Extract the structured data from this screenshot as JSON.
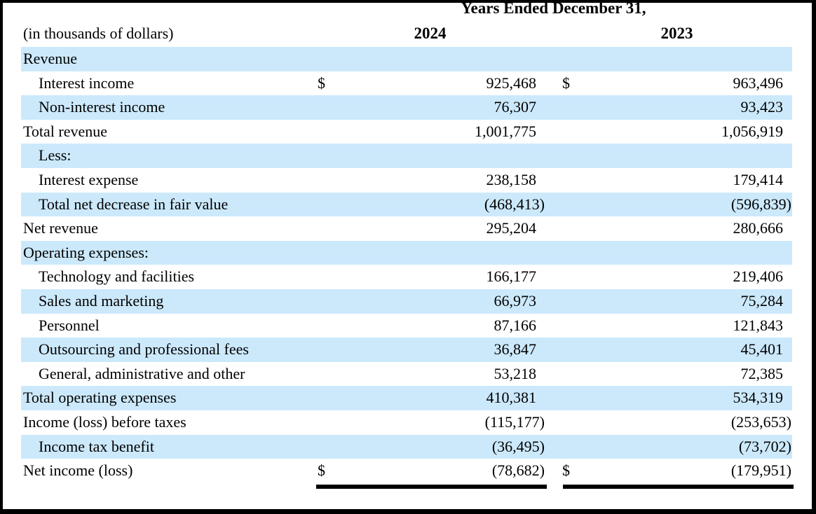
{
  "header": {
    "title": "Years Ended December 31,",
    "corner_label": "(in thousands of dollars)",
    "col_2024": "2024",
    "col_2023": "2023"
  },
  "style": {
    "shade_color": "#cce9fb",
    "text_color": "#000000",
    "border_color": "#000000"
  },
  "currency_symbol": "$",
  "rows": [
    {
      "label": "Revenue",
      "indent": 0,
      "shaded": true,
      "d2024": "",
      "v2024": "",
      "d2023": "",
      "v2023": ""
    },
    {
      "label": "Interest income",
      "indent": 1,
      "shaded": false,
      "d2024": "$",
      "v2024": "925,468",
      "d2023": "$",
      "v2023": "963,496"
    },
    {
      "label": "Non-interest income",
      "indent": 1,
      "shaded": true,
      "d2024": "",
      "v2024": "76,307",
      "d2023": "",
      "v2023": "93,423"
    },
    {
      "label": "Total revenue",
      "indent": 0,
      "shaded": false,
      "d2024": "",
      "v2024": "1,001,775",
      "d2023": "",
      "v2023": "1,056,919"
    },
    {
      "label": "Less:",
      "indent": 1,
      "shaded": true,
      "d2024": "",
      "v2024": "",
      "d2023": "",
      "v2023": ""
    },
    {
      "label": "Interest expense",
      "indent": 1,
      "shaded": false,
      "d2024": "",
      "v2024": "238,158",
      "d2023": "",
      "v2023": "179,414"
    },
    {
      "label": "Total net decrease in fair value",
      "indent": 1,
      "shaded": true,
      "d2024": "",
      "v2024": "(468,413)",
      "d2023": "",
      "v2023": "(596,839)"
    },
    {
      "label": "Net revenue",
      "indent": 0,
      "shaded": false,
      "d2024": "",
      "v2024": "295,204",
      "d2023": "",
      "v2023": "280,666"
    },
    {
      "label": "Operating expenses:",
      "indent": 0,
      "shaded": true,
      "d2024": "",
      "v2024": "",
      "d2023": "",
      "v2023": ""
    },
    {
      "label": "Technology and facilities",
      "indent": 1,
      "shaded": false,
      "d2024": "",
      "v2024": "166,177",
      "d2023": "",
      "v2023": "219,406"
    },
    {
      "label": "Sales and marketing",
      "indent": 1,
      "shaded": true,
      "d2024": "",
      "v2024": "66,973",
      "d2023": "",
      "v2023": "75,284"
    },
    {
      "label": "Personnel",
      "indent": 1,
      "shaded": false,
      "d2024": "",
      "v2024": "87,166",
      "d2023": "",
      "v2023": "121,843"
    },
    {
      "label": "Outsourcing and professional fees",
      "indent": 1,
      "shaded": true,
      "d2024": "",
      "v2024": "36,847",
      "d2023": "",
      "v2023": "45,401"
    },
    {
      "label": "General, administrative and other",
      "indent": 1,
      "shaded": false,
      "d2024": "",
      "v2024": "53,218",
      "d2023": "",
      "v2023": "72,385"
    },
    {
      "label": "Total operating expenses",
      "indent": 0,
      "shaded": true,
      "d2024": "",
      "v2024": "410,381",
      "d2023": "",
      "v2023": "534,319"
    },
    {
      "label": "Income (loss) before taxes",
      "indent": 0,
      "shaded": false,
      "d2024": "",
      "v2024": "(115,177)",
      "d2023": "",
      "v2023": "(253,653)"
    },
    {
      "label": "Income tax benefit",
      "indent": 1,
      "shaded": true,
      "d2024": "",
      "v2024": "(36,495)",
      "d2023": "",
      "v2023": "(73,702)"
    },
    {
      "label": "Net income (loss)",
      "indent": 0,
      "shaded": false,
      "d2024": "$",
      "v2024": "(78,682)",
      "d2023": "$",
      "v2023": "(179,951)",
      "double_underline": true
    }
  ]
}
